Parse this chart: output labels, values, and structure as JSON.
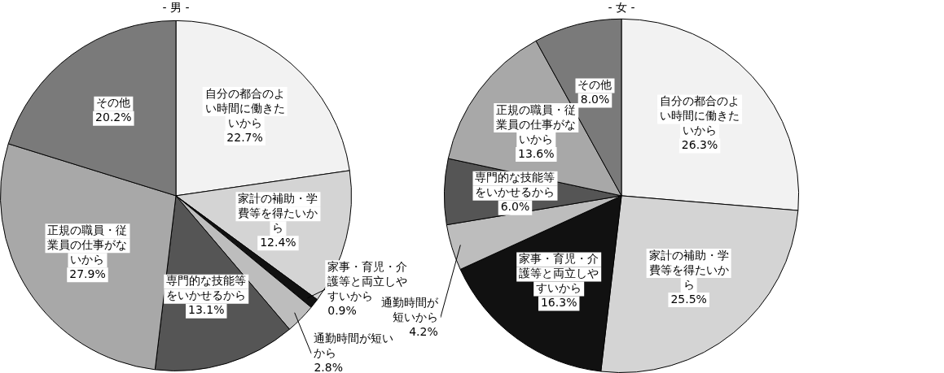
{
  "chart_data": [
    {
      "type": "pie",
      "title": "- 男 -",
      "categories": [
        "自分の都合のよい時間に働きたいから",
        "家計の補助・学費等を得たいから",
        "家事・育児・介護等と両立しやすいから",
        "通勤時間が短いから",
        "専門的な技能等をいかせるから",
        "正規の職員・従業員の仕事がないから",
        "その他"
      ],
      "values": [
        22.7,
        12.4,
        0.9,
        2.8,
        13.1,
        27.9,
        20.2
      ],
      "value_labels": [
        "22.7%",
        "12.4%",
        "0.9%",
        "2.8%",
        "13.1%",
        "27.9%",
        "20.2%"
      ],
      "colors": [
        "#f2f2f2",
        "#d4d4d4",
        "#111111",
        "#bdbdbd",
        "#555555",
        "#a8a8a8",
        "#7a7a7a"
      ]
    },
    {
      "type": "pie",
      "title": "- 女 -",
      "categories": [
        "自分の都合のよい時間に働きたいから",
        "家計の補助・学費等を得たいから",
        "家事・育児・介護等と両立しやすいから",
        "通勤時間が短いから",
        "専門的な技能等をいかせるから",
        "正規の職員・従業員の仕事がないから",
        "その他"
      ],
      "values": [
        26.3,
        25.5,
        16.3,
        4.2,
        6.0,
        13.6,
        8.0
      ],
      "value_labels": [
        "26.3%",
        "25.5%",
        "16.3%",
        "4.2%",
        "6.0%",
        "13.6%",
        "8.0%"
      ],
      "colors": [
        "#f2f2f2",
        "#d4d4d4",
        "#111111",
        "#bdbdbd",
        "#555555",
        "#a8a8a8",
        "#7a7a7a"
      ]
    }
  ]
}
